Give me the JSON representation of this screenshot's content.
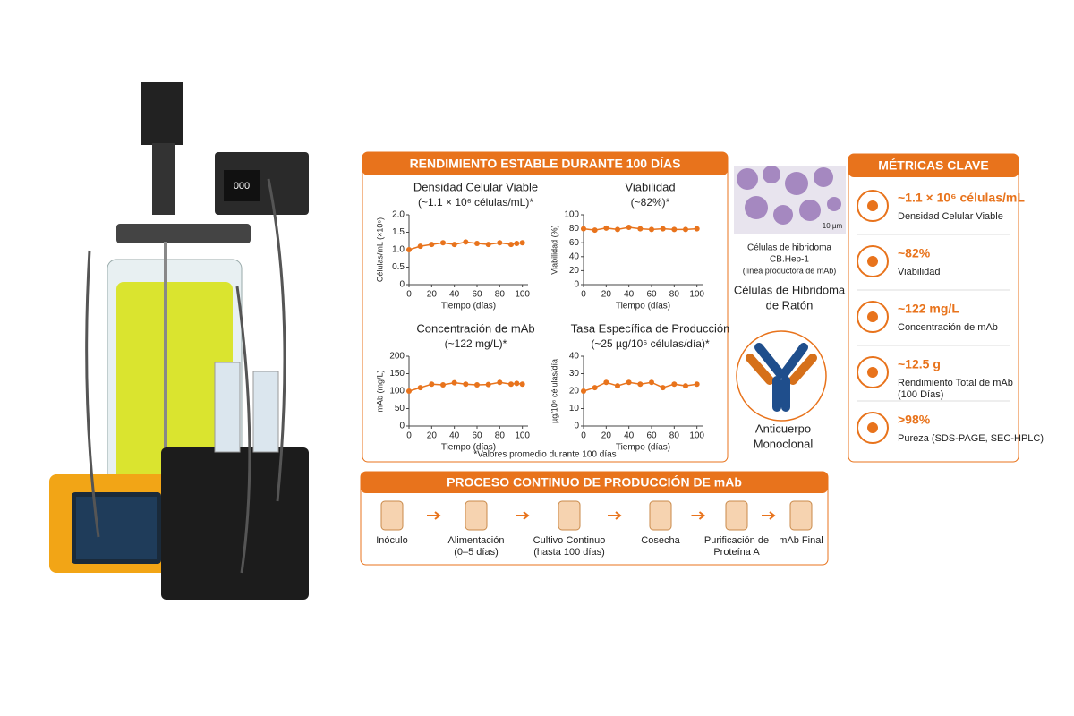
{
  "panel_title": "RENDIMIENTO ESTABLE DURANTE 100 DÍAS",
  "chart_data": [
    {
      "type": "line",
      "title": "Densidad Celular Viable",
      "subtitle": "(~1.1 × 10⁶ células/mL)*",
      "x_label": "Tiempo (días)",
      "y_label": "Células/mL (×10⁶)",
      "color": "#e8731c",
      "x": [
        0,
        10,
        20,
        30,
        40,
        50,
        60,
        70,
        80,
        90,
        95,
        100
      ],
      "values": [
        1.0,
        1.1,
        1.15,
        1.2,
        1.15,
        1.22,
        1.18,
        1.15,
        1.2,
        1.15,
        1.18,
        1.2
      ],
      "xlim": [
        0,
        105
      ],
      "xticks": [
        0,
        20,
        40,
        60,
        80,
        100
      ],
      "ylim": [
        0,
        2
      ],
      "yticks": [
        0,
        0.5,
        {
          "value": 1,
          "label": "1.0"
        },
        1.5,
        {
          "value": 2,
          "label": "2.0"
        }
      ]
    },
    {
      "type": "line",
      "title": "Viabilidad",
      "subtitle": "(~82%)*",
      "x_label": "Tiempo (días)",
      "y_label": "Viabilidad (%)",
      "color": "#e8731c",
      "x": [
        0,
        10,
        20,
        30,
        40,
        50,
        60,
        70,
        80,
        90,
        100
      ],
      "values": [
        80,
        78,
        81,
        79,
        82,
        80,
        79,
        80,
        79,
        79,
        80
      ],
      "xlim": [
        0,
        105
      ],
      "xticks": [
        0,
        20,
        40,
        60,
        80,
        100
      ],
      "ylim": [
        0,
        100
      ],
      "yticks": [
        0,
        20,
        40,
        60,
        80,
        100
      ]
    },
    {
      "type": "line",
      "title": "Concentración de mAb",
      "subtitle": "(~122 mg/L)*",
      "x_label": "Tiempo (días)",
      "y_label": "mAb (mg/L)",
      "color": "#e8731c",
      "x": [
        0,
        10,
        20,
        30,
        40,
        50,
        60,
        70,
        80,
        90,
        95,
        100
      ],
      "values": [
        100,
        110,
        120,
        118,
        124,
        120,
        118,
        119,
        125,
        120,
        122,
        120
      ],
      "xlim": [
        0,
        105
      ],
      "xticks": [
        0,
        20,
        40,
        60,
        80,
        100
      ],
      "ylim": [
        0,
        200
      ],
      "yticks": [
        0,
        50,
        100,
        150,
        200
      ]
    },
    {
      "type": "line",
      "title": "Tasa Específica de Producción",
      "subtitle": "(~25 µg/10⁶ células/día)*",
      "x_label": "Tiempo (días)",
      "y_label": "µg/10⁶ células/día",
      "color": "#e8731c",
      "x": [
        0,
        10,
        20,
        30,
        40,
        50,
        60,
        70,
        80,
        90,
        100
      ],
      "values": [
        20,
        22,
        25,
        23,
        25,
        24,
        25,
        22,
        24,
        23,
        24
      ],
      "xlim": [
        0,
        105
      ],
      "xticks": [
        0,
        20,
        40,
        60,
        80,
        100
      ],
      "ylim": [
        0,
        40
      ],
      "yticks": [
        0,
        10,
        20,
        30,
        40
      ]
    }
  ],
  "footnote": "*Valores promedio durante 100 días",
  "cells": {
    "scale": "10 µm",
    "caption": [
      "Células de hibridoma",
      "CB.Hep-1",
      "(línea productora de mAb)"
    ],
    "name": [
      "Células de Hibridoma",
      "de Ratón"
    ],
    "antibody": [
      "Anticuerpo",
      "Monoclonal"
    ]
  },
  "metrics": {
    "title": "MÉTRICAS CLAVE",
    "items": [
      {
        "value": "~1.1 × 10⁶ células/mL",
        "label": [
          "Densidad Celular Viable"
        ]
      },
      {
        "value": "~82%",
        "label": [
          "Viabilidad"
        ]
      },
      {
        "value": "~122 mg/L",
        "label": [
          "Concentración de mAb"
        ]
      },
      {
        "value": "~12.5 g",
        "label": [
          "Rendimiento Total de mAb",
          "(100 Días)"
        ]
      },
      {
        "value": ">98%",
        "label": [
          "Pureza (SDS-PAGE, SEC-HPLC)"
        ]
      }
    ]
  },
  "process": {
    "title": "PROCESO CONTINUO DE PRODUCCIÓN DE mAb",
    "steps": [
      {
        "label": [
          "Inóculo"
        ]
      },
      {
        "label": [
          "Alimentación",
          "(0–5 días)"
        ]
      },
      {
        "label": [
          "Cultivo Continuo",
          "(hasta 100 días)"
        ]
      },
      {
        "label": [
          "Cosecha"
        ]
      },
      {
        "label": [
          "Purificación de",
          "Proteína A"
        ]
      },
      {
        "label": [
          "mAb Final"
        ]
      }
    ]
  }
}
